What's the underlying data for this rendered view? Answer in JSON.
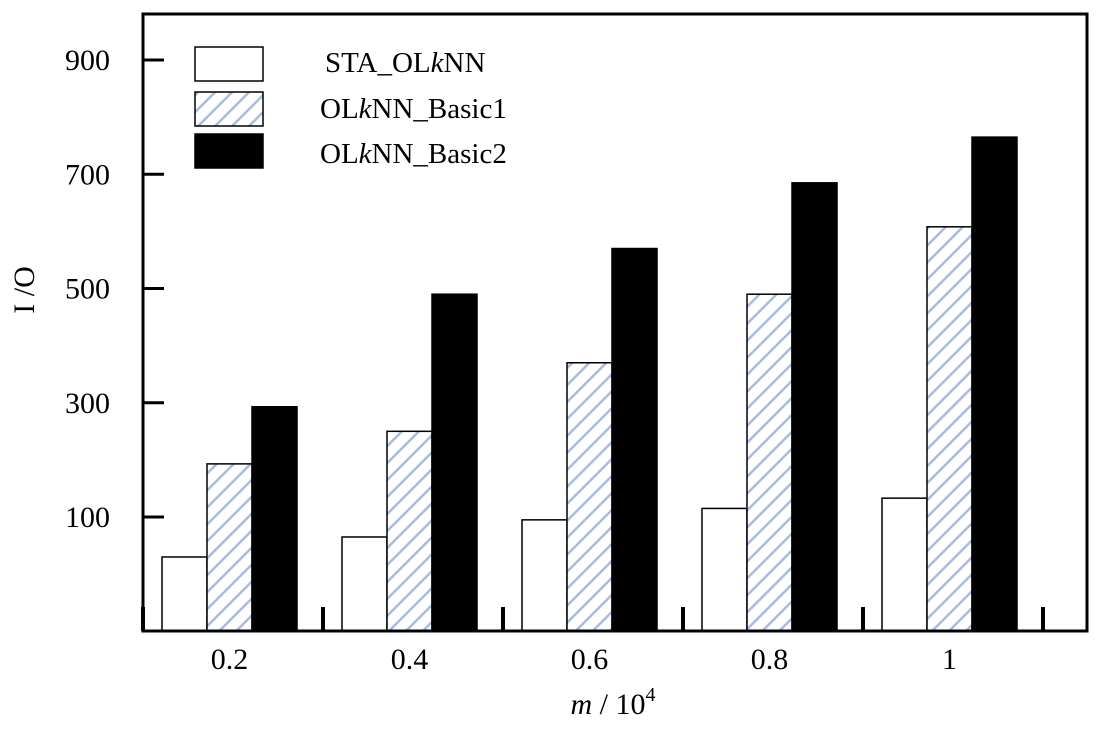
{
  "chart_data": {
    "type": "bar",
    "title": "",
    "xlabel": {
      "italic": "m",
      "rest": " / 10",
      "sup": "4"
    },
    "ylabel": "I /O",
    "categories": [
      "0.2",
      "0.4",
      "0.6",
      "0.8",
      "1"
    ],
    "series": [
      {
        "name_parts": [
          "STA_OL",
          "k",
          "NN"
        ],
        "style": "white",
        "values": [
          30,
          65,
          95,
          115,
          133
        ]
      },
      {
        "name_parts": [
          "OL",
          "k",
          "NN_Basic1"
        ],
        "style": "hatched",
        "values": [
          193,
          250,
          370,
          490,
          608
        ]
      },
      {
        "name_parts": [
          "OL",
          "k",
          "NN_Basic2"
        ],
        "style": "black",
        "values": [
          293,
          490,
          570,
          685,
          765
        ]
      }
    ],
    "yticks": [
      100,
      300,
      500,
      700,
      900
    ],
    "ylim": [
      0,
      1000
    ],
    "legend_position": "top-left",
    "grid": false
  },
  "colors": {
    "hatch_line": "#a8bce0",
    "bar_black": "#000000",
    "bar_white": "#ffffff"
  }
}
